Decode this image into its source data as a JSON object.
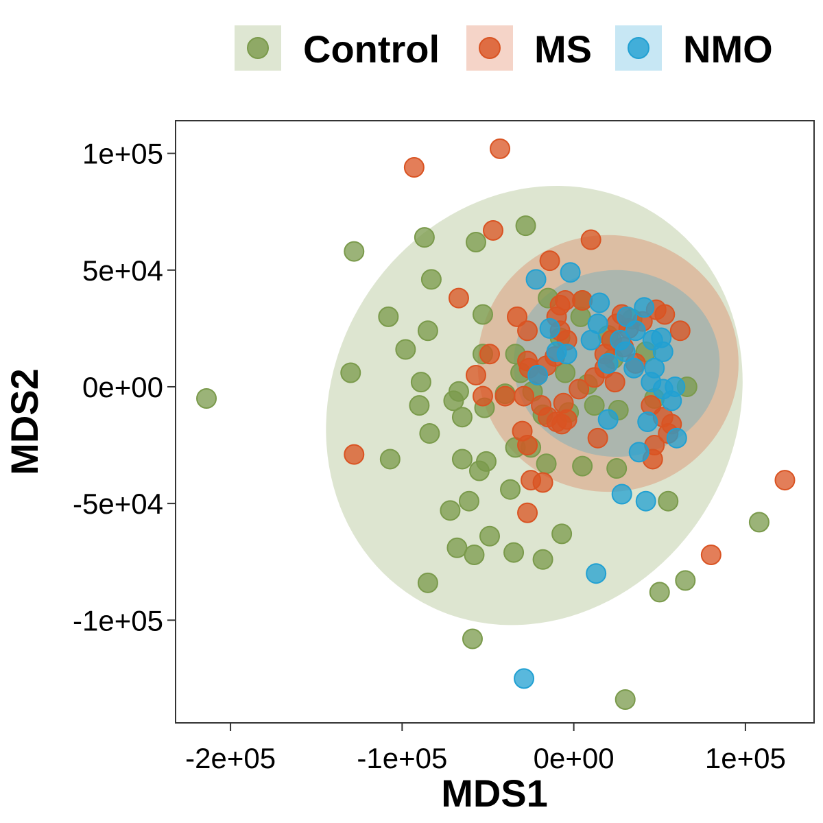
{
  "chart_data": {
    "type": "scatter",
    "xlabel": "MDS1",
    "ylabel": "MDS2",
    "xlim": [
      -232000,
      140000
    ],
    "ylim": [
      -144000,
      114000
    ],
    "x_ticks": [
      {
        "value": -200000,
        "label": "-2e+05"
      },
      {
        "value": -100000,
        "label": "-1e+05"
      },
      {
        "value": 0,
        "label": "0e+00"
      },
      {
        "value": 100000,
        "label": "1e+05"
      }
    ],
    "y_ticks": [
      {
        "value": 100000,
        "label": "1e+05"
      },
      {
        "value": 50000,
        "label": "5e+04"
      },
      {
        "value": 0,
        "label": "0e+00"
      },
      {
        "value": -50000,
        "label": "-5e+04"
      },
      {
        "value": -100000,
        "label": "-1e+05"
      }
    ],
    "grid": false,
    "legend_position": "top",
    "series": [
      {
        "name": "Control",
        "color": "#7A9A4B",
        "ellipse": {
          "center": [
            -23000,
            -8000
          ],
          "rx": 132000,
          "ry": 86000,
          "angle_deg": 122
        },
        "points": [
          [
            -214000,
            -5000
          ],
          [
            -128000,
            58000
          ],
          [
            -130000,
            6000
          ],
          [
            -108000,
            30000
          ],
          [
            -98000,
            16000
          ],
          [
            -107000,
            -31000
          ],
          [
            -87000,
            64000
          ],
          [
            -83000,
            46000
          ],
          [
            -85000,
            24000
          ],
          [
            -89000,
            2000
          ],
          [
            -90000,
            -8000
          ],
          [
            -84000,
            -20000
          ],
          [
            -85000,
            -84000
          ],
          [
            -67000,
            -2000
          ],
          [
            -70000,
            -6000
          ],
          [
            -65000,
            -13000
          ],
          [
            -65000,
            -31000
          ],
          [
            -57000,
            62000
          ],
          [
            -53000,
            31000
          ],
          [
            -53000,
            14000
          ],
          [
            -52000,
            -9000
          ],
          [
            -51000,
            -32000
          ],
          [
            -55000,
            -36000
          ],
          [
            -61000,
            -49000
          ],
          [
            -72000,
            -53000
          ],
          [
            -68000,
            -69000
          ],
          [
            -58000,
            -72000
          ],
          [
            -49000,
            -64000
          ],
          [
            -40000,
            -3000
          ],
          [
            -34000,
            -26000
          ],
          [
            -37000,
            -44000
          ],
          [
            -35000,
            -71000
          ],
          [
            -28000,
            69000
          ],
          [
            -34000,
            14000
          ],
          [
            -31000,
            6000
          ],
          [
            -24000,
            -2000
          ],
          [
            -25000,
            -26000
          ],
          [
            -18000,
            -12000
          ],
          [
            -15000,
            38000
          ],
          [
            -16000,
            -33000
          ],
          [
            -18000,
            -74000
          ],
          [
            -7000,
            -63000
          ],
          [
            -8000,
            21000
          ],
          [
            -5000,
            6000
          ],
          [
            -3000,
            -11000
          ],
          [
            4000,
            30000
          ],
          [
            5000,
            37000
          ],
          [
            8000,
            1000
          ],
          [
            12000,
            -8000
          ],
          [
            5000,
            -34000
          ],
          [
            20000,
            22000
          ],
          [
            23000,
            12000
          ],
          [
            26000,
            -10000
          ],
          [
            25000,
            -35000
          ],
          [
            34000,
            29000
          ],
          [
            42000,
            15000
          ],
          [
            47000,
            -5000
          ],
          [
            55000,
            -49000
          ],
          [
            66000,
            0
          ],
          [
            50000,
            -88000
          ],
          [
            65000,
            -83000
          ],
          [
            108000,
            -58000
          ],
          [
            -59000,
            -108000
          ],
          [
            30000,
            -134000
          ]
        ]
      },
      {
        "name": "MS",
        "color": "#D95322",
        "ellipse": {
          "center": [
            20000,
            10000
          ],
          "rx": 76000,
          "ry": 55000,
          "angle_deg": 0
        },
        "points": [
          [
            -43000,
            102000
          ],
          [
            -93000,
            94000
          ],
          [
            -47000,
            67000
          ],
          [
            10000,
            63000
          ],
          [
            -14000,
            54000
          ],
          [
            -67000,
            38000
          ],
          [
            -33000,
            30000
          ],
          [
            -27000,
            24000
          ],
          [
            -49000,
            14000
          ],
          [
            -57000,
            5000
          ],
          [
            -53000,
            -4000
          ],
          [
            -40000,
            -4000
          ],
          [
            -21000,
            5000
          ],
          [
            -27000,
            11000
          ],
          [
            -8000,
            35000
          ],
          [
            -5000,
            37000
          ],
          [
            -10000,
            30000
          ],
          [
            5000,
            37000
          ],
          [
            -8000,
            24000
          ],
          [
            -4000,
            20000
          ],
          [
            -11000,
            13000
          ],
          [
            -16000,
            9000
          ],
          [
            -26000,
            8000
          ],
          [
            -29000,
            -4000
          ],
          [
            -30000,
            -19000
          ],
          [
            -27000,
            -25000
          ],
          [
            -19000,
            -8000
          ],
          [
            -15000,
            -13000
          ],
          [
            -10000,
            -15000
          ],
          [
            -6000,
            -7000
          ],
          [
            -7000,
            -16000
          ],
          [
            -4000,
            -14000
          ],
          [
            3000,
            -1000
          ],
          [
            12000,
            4000
          ],
          [
            18000,
            14000
          ],
          [
            22000,
            20000
          ],
          [
            25000,
            27000
          ],
          [
            28000,
            31000
          ],
          [
            32000,
            25000
          ],
          [
            29000,
            17000
          ],
          [
            36000,
            10000
          ],
          [
            40000,
            28000
          ],
          [
            48000,
            33000
          ],
          [
            53000,
            31000
          ],
          [
            62000,
            24000
          ],
          [
            45000,
            -8000
          ],
          [
            52000,
            -13000
          ],
          [
            57000,
            -16000
          ],
          [
            55000,
            -20000
          ],
          [
            47000,
            -25000
          ],
          [
            46000,
            -31000
          ],
          [
            14000,
            -22000
          ],
          [
            -25000,
            -40000
          ],
          [
            -18000,
            -41000
          ],
          [
            -27000,
            -54000
          ],
          [
            -128000,
            -29000
          ],
          [
            80000,
            -72000
          ],
          [
            123000,
            -40000
          ],
          [
            18000,
            8000
          ],
          [
            24000,
            2000
          ]
        ]
      },
      {
        "name": "NMO",
        "color": "#21A0D2",
        "ellipse": {
          "center": [
            25000,
            10000
          ],
          "rx": 60000,
          "ry": 40000,
          "angle_deg": 0
        },
        "points": [
          [
            -22000,
            46000
          ],
          [
            -2000,
            49000
          ],
          [
            15000,
            36000
          ],
          [
            -14000,
            25000
          ],
          [
            -10000,
            15000
          ],
          [
            -4000,
            14000
          ],
          [
            -21000,
            5000
          ],
          [
            10000,
            20000
          ],
          [
            14000,
            27000
          ],
          [
            20000,
            10000
          ],
          [
            27000,
            20000
          ],
          [
            31000,
            30000
          ],
          [
            36000,
            24000
          ],
          [
            41000,
            34000
          ],
          [
            46000,
            20000
          ],
          [
            51000,
            21000
          ],
          [
            52000,
            15000
          ],
          [
            47000,
            8000
          ],
          [
            45000,
            2000
          ],
          [
            52000,
            -1000
          ],
          [
            57000,
            -6000
          ],
          [
            59000,
            0
          ],
          [
            20000,
            -14000
          ],
          [
            43000,
            -15000
          ],
          [
            38000,
            -28000
          ],
          [
            60000,
            -22000
          ],
          [
            28000,
            -46000
          ],
          [
            42000,
            -49000
          ],
          [
            13000,
            -80000
          ],
          [
            -29000,
            -125000
          ],
          [
            30000,
            15000
          ],
          [
            35000,
            8000
          ]
        ]
      }
    ]
  }
}
